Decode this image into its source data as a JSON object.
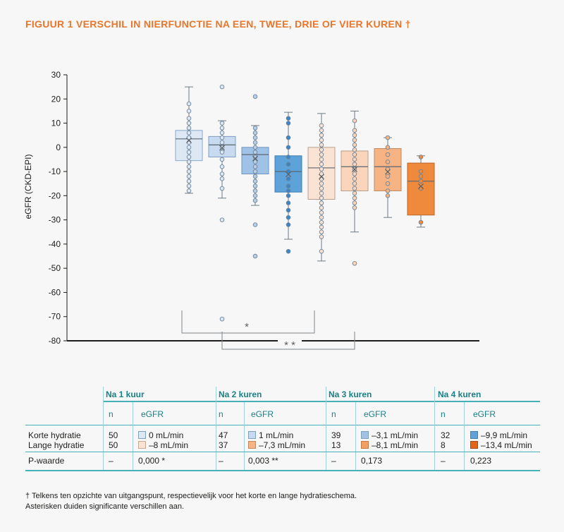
{
  "title": "FIGUUR 1  VERSCHIL IN NIERFUNCTIE NA EEN, TWEE, DRIE OF VIER KUREN †",
  "chart_data": {
    "type": "box",
    "ylabel": "eGFR (CKD-EPI)",
    "ylim": [
      -80,
      30
    ],
    "yticks": [
      30,
      20,
      10,
      0,
      -10,
      -20,
      -30,
      -40,
      -50,
      -60,
      -70,
      -80
    ],
    "grid": false,
    "series": [
      {
        "min": -19,
        "q1": -5.5,
        "median": 3.5,
        "q3": 7,
        "max": 25,
        "mean": 3,
        "fill": "#dde8f5",
        "stroke": "#8aa7c9",
        "dot": "#dde8f5",
        "points": [
          18,
          15,
          12,
          10,
          8,
          6,
          4,
          2,
          0,
          -2,
          -4,
          -6,
          -8,
          -10,
          -12,
          -14,
          -16,
          -18
        ]
      },
      {
        "min": -21,
        "q1": -4,
        "median": 1,
        "q3": 4.5,
        "max": 11,
        "mean": 0,
        "fill": "#c7daf0",
        "stroke": "#7f9fc4",
        "dot": "#dde8f5",
        "points": [
          25,
          10,
          8,
          6,
          4,
          2,
          0,
          -2,
          -5,
          -8,
          -11,
          -13,
          -17,
          -30,
          -71
        ]
      },
      {
        "min": -24,
        "q1": -11,
        "median": -3,
        "q3": 0,
        "max": 9,
        "mean": -4.5,
        "fill": "#9fc2e6",
        "stroke": "#6f94bf",
        "dot": "#b7cfe8",
        "points": [
          21,
          8,
          6,
          4,
          2,
          0,
          -2,
          -4,
          -6,
          -8,
          -10,
          -12,
          -14,
          -16,
          -18,
          -20,
          -22,
          -32,
          -45
        ]
      },
      {
        "min": -38,
        "q1": -18.5,
        "median": -10,
        "q3": -3.5,
        "max": 14.5,
        "mean": -11,
        "fill": "#5da2d8",
        "stroke": "#3f7fb3",
        "dot": "#3a86c8",
        "points": [
          12,
          10,
          4,
          0,
          -4,
          -7,
          -10,
          -13,
          -16,
          -18,
          -20,
          -23,
          -26,
          -29,
          -32,
          -43
        ]
      },
      {
        "min": -47,
        "q1": -21.5,
        "median": -8.5,
        "q3": 0,
        "max": 14,
        "mean": -12,
        "fill": "#fbe3d4",
        "stroke": "#b8a08c",
        "dot": "#fbe3d4",
        "points": [
          9,
          7,
          5,
          3,
          1,
          -1,
          -3,
          -5,
          -7,
          -9,
          -11,
          -13,
          -15,
          -17,
          -19,
          -21,
          -23,
          -25,
          -27,
          -29,
          -31,
          -33,
          -35,
          -37,
          -43
        ]
      },
      {
        "min": -35,
        "q1": -18,
        "median": -8,
        "q3": -1.5,
        "max": 15,
        "mean": -9,
        "fill": "#fbd5bb",
        "stroke": "#b89d86",
        "dot": "#fbd5bb",
        "points": [
          11,
          7,
          5,
          3,
          1,
          -1,
          -3,
          -5,
          -7,
          -9,
          -11,
          -13,
          -15,
          -17,
          -19,
          -21,
          -23,
          -25,
          -48
        ]
      },
      {
        "min": -29,
        "q1": -18,
        "median": -8,
        "q3": -0.5,
        "max": 4,
        "mean": -10,
        "fill": "#f6b383",
        "stroke": "#c08a5f",
        "dot": "#f6b383",
        "points": [
          4,
          0,
          -3,
          -6,
          -9,
          -12,
          -15,
          -18,
          -20
        ]
      },
      {
        "min": -33,
        "q1": -28,
        "median": -14,
        "q3": -6.5,
        "max": -3.5,
        "mean": -16,
        "fill": "#ef8a3c",
        "stroke": "#b9662b",
        "dot": "#ef8a3c",
        "points": [
          -4,
          -10,
          -12,
          -14,
          -17,
          -31
        ]
      }
    ],
    "annotations": [
      "*",
      "* *"
    ]
  },
  "table": {
    "groups": [
      "Na 1 kuur",
      "Na 2 kuren",
      "Na 3 kuren",
      "Na 4 kuren"
    ],
    "col_n": "n",
    "col_egfr": "eGFR",
    "rows": [
      {
        "label": "Korte hydratie",
        "n": [
          "50",
          "47",
          "39",
          "32"
        ],
        "egfr": [
          "0 mL/min",
          "1 mL/min",
          "–3,1 mL/min",
          "–9,9 mL/min"
        ],
        "colors": [
          "#dde8f5",
          "#9fc2e6",
          "#9fc2e6",
          "#5da2d8"
        ]
      },
      {
        "label": "Lange hydratie",
        "n": [
          "50",
          "37",
          "13",
          "8"
        ],
        "egfr": [
          "–8 mL/min",
          "–7,3 mL/min",
          "–8,1 mL/min",
          "–13,4 mL/min"
        ],
        "colors": [
          "#fbe3d4",
          "#f6b383",
          "#f3a066",
          "#e0661a"
        ]
      }
    ],
    "pvalue_label": "P-waarde",
    "pvalue_n": [
      "–",
      "–",
      "–",
      "–"
    ],
    "pvalues": [
      "0,000 *",
      "0,003 **",
      "0,173",
      "0,223"
    ]
  },
  "footnote": [
    "† Telkens ten opzichte van uitgangspunt, respectievelijk voor het korte en lange hydratieschema.",
    "Asterisken duiden significante verschillen aan."
  ]
}
